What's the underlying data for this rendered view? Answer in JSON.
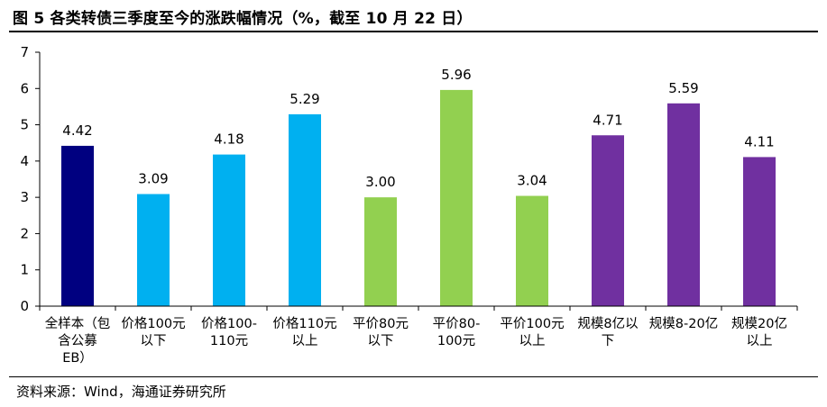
{
  "title": "图 5  各类转债三季度至今的涨跌幅情况（%，截至 10 月 22 日）",
  "source": "资料来源：Wind，海通证券研究所",
  "chart_data": {
    "type": "bar",
    "categories": [
      [
        "全样本（包",
        "含公募",
        "EB）"
      ],
      [
        "价格100元",
        "以下"
      ],
      [
        "价格100-",
        "110元"
      ],
      [
        "价格110元",
        "以上"
      ],
      [
        "平价80元",
        "以下"
      ],
      [
        "平价80-",
        "100元"
      ],
      [
        "平价100元",
        "以上"
      ],
      [
        "规模8亿以",
        "下"
      ],
      [
        "规模8-20亿"
      ],
      [
        "规模20亿",
        "以上"
      ]
    ],
    "values": [
      4.42,
      3.09,
      4.18,
      5.29,
      3.0,
      5.96,
      3.04,
      4.71,
      5.59,
      4.11
    ],
    "value_labels": [
      "4.42",
      "3.09",
      "4.18",
      "5.29",
      "3.00",
      "5.96",
      "3.04",
      "4.71",
      "5.59",
      "4.11"
    ],
    "colors": [
      "#000080",
      "#00B0F0",
      "#00B0F0",
      "#00B0F0",
      "#92D050",
      "#92D050",
      "#92D050",
      "#7030A0",
      "#7030A0",
      "#7030A0"
    ],
    "ylim": [
      0,
      7
    ],
    "yticks": [
      "0",
      "1",
      "2",
      "3",
      "4",
      "5",
      "6",
      "7"
    ],
    "grid": false,
    "legend": "none"
  }
}
